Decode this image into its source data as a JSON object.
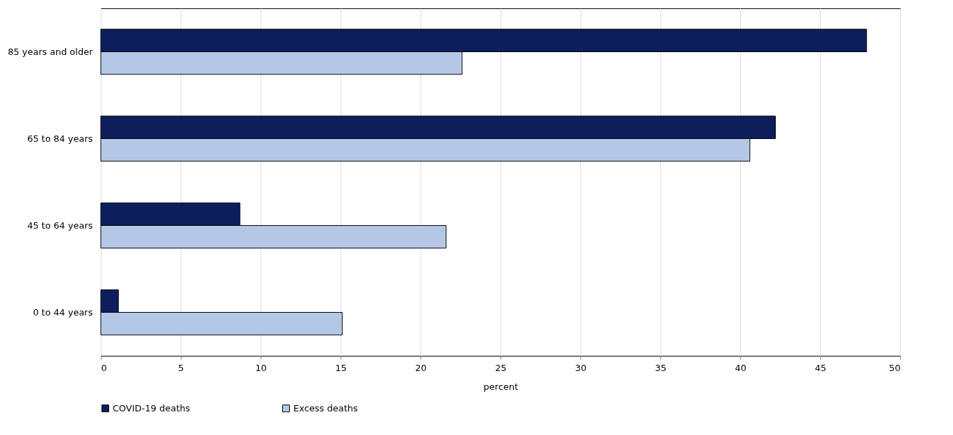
{
  "chart_data": {
    "type": "bar",
    "orientation": "horizontal",
    "xlabel": "percent",
    "categories": [
      "85 years and older",
      "65 to 84 years",
      "45 to 64 years",
      "0 to 44 years"
    ],
    "series": [
      {
        "name": "COVID-19 deaths",
        "color": "#0c1f5c",
        "values": [
          47.9,
          42.2,
          8.7,
          1.1
        ]
      },
      {
        "name": "Excess deaths",
        "color": "#b4c7e7",
        "values": [
          22.6,
          40.6,
          21.6,
          15.1
        ]
      }
    ],
    "xlim": [
      0,
      50
    ],
    "xticks": [
      0,
      5,
      10,
      15,
      20,
      25,
      30,
      35,
      40,
      45,
      50
    ],
    "grid": "x",
    "legend": "bottom"
  }
}
